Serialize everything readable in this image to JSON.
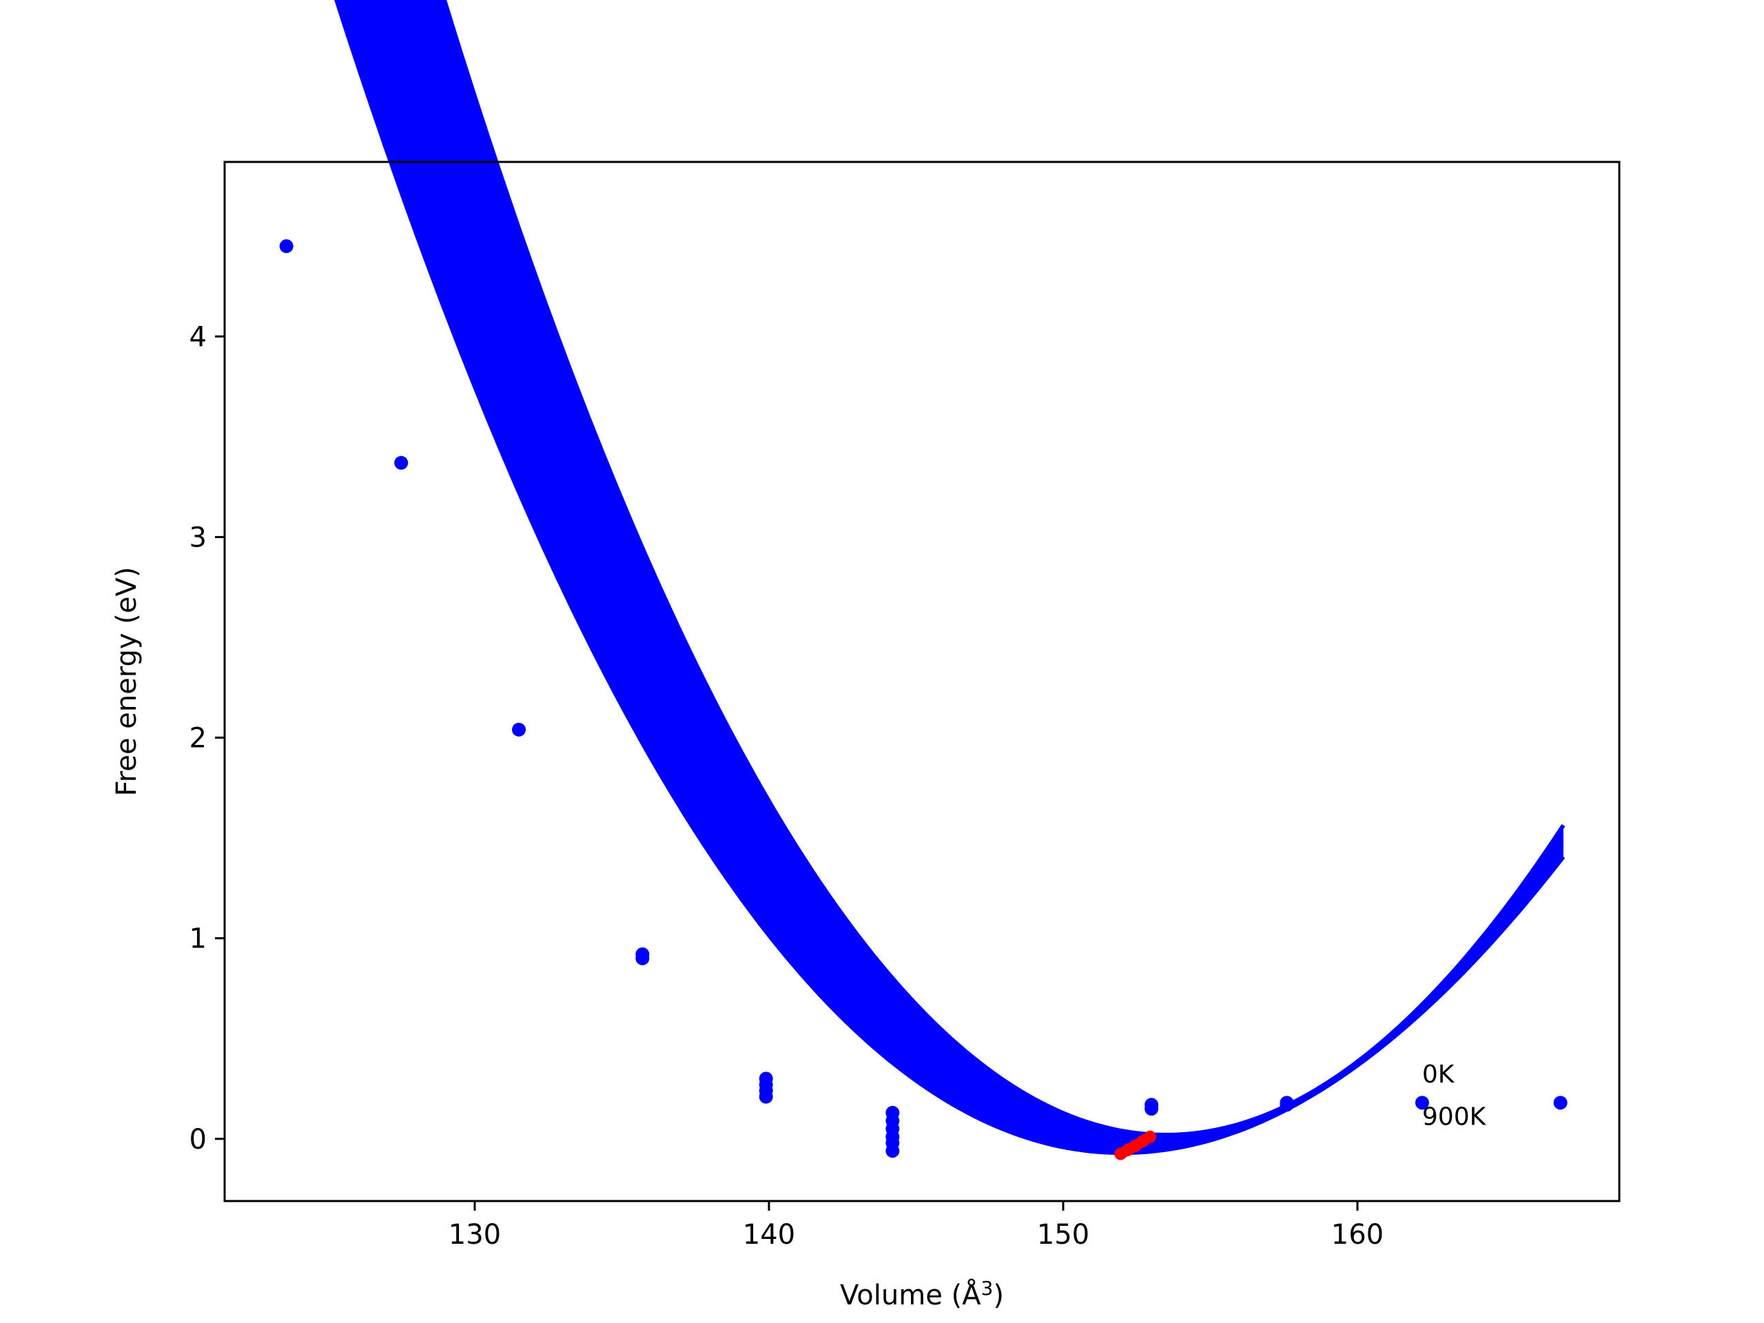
{
  "chart_data": {
    "type": "scatter",
    "title": "",
    "xlabel": "Volume (Å",
    "xlabel_superscript": "3",
    "xlabel_close": ")",
    "ylabel": "Free energy (eV)",
    "xlim": [
      121.5,
      168.9
    ],
    "ylim": [
      -0.31,
      4.87
    ],
    "xticks": [
      130,
      140,
      150,
      160
    ],
    "yticks": [
      0,
      1,
      2,
      3,
      4
    ],
    "grid": false,
    "legend": "none",
    "colors": {
      "points": "#0000ff",
      "curves": "#0000ff",
      "equilibrium": "#ff0000",
      "frame": "#000000"
    },
    "annotations": [
      {
        "text": "0K",
        "x": 162.2,
        "y": 0.28
      },
      {
        "text": "900K",
        "x": 162.2,
        "y": 0.07
      }
    ],
    "points": [
      {
        "x": 123.6,
        "y": 4.45
      },
      {
        "x": 127.5,
        "y": 3.37
      },
      {
        "x": 131.5,
        "y": 2.04
      },
      {
        "x": 135.7,
        "y": 0.92
      },
      {
        "x": 135.7,
        "y": 0.9
      },
      {
        "x": 139.9,
        "y": 0.3
      },
      {
        "x": 139.9,
        "y": 0.27
      },
      {
        "x": 139.9,
        "y": 0.24
      },
      {
        "x": 139.9,
        "y": 0.21
      },
      {
        "x": 144.2,
        "y": 0.13
      },
      {
        "x": 144.2,
        "y": 0.09
      },
      {
        "x": 144.2,
        "y": 0.05
      },
      {
        "x": 144.2,
        "y": 0.01
      },
      {
        "x": 144.2,
        "y": -0.02
      },
      {
        "x": 144.2,
        "y": -0.06
      },
      {
        "x": 148.5,
        "y": 0.16
      },
      {
        "x": 148.5,
        "y": 0.13
      },
      {
        "x": 148.5,
        "y": 0.1
      },
      {
        "x": 153.0,
        "y": 0.17
      },
      {
        "x": 153.0,
        "y": 0.15
      },
      {
        "x": 157.6,
        "y": 0.18
      },
      {
        "x": 157.6,
        "y": 0.17
      },
      {
        "x": 162.2,
        "y": 0.18
      },
      {
        "x": 166.9,
        "y": 0.18
      }
    ],
    "curve_band": {
      "x_range": [
        123.7,
        167.0
      ],
      "upper": {
        "label": "0K",
        "v0": 153.5,
        "e0": 0.02,
        "a": 0.0088,
        "b": 2.45e-05
      },
      "lower": {
        "label": "900K",
        "v0": 152.0,
        "e0": -0.07,
        "a": 0.0071,
        "b": 3.6e-05
      }
    },
    "equilibrium_points": [
      {
        "x": 151.95,
        "y": -0.075
      },
      {
        "x": 152.2,
        "y": -0.055
      },
      {
        "x": 152.45,
        "y": -0.035
      },
      {
        "x": 152.7,
        "y": -0.012
      },
      {
        "x": 152.95,
        "y": 0.01
      }
    ]
  }
}
